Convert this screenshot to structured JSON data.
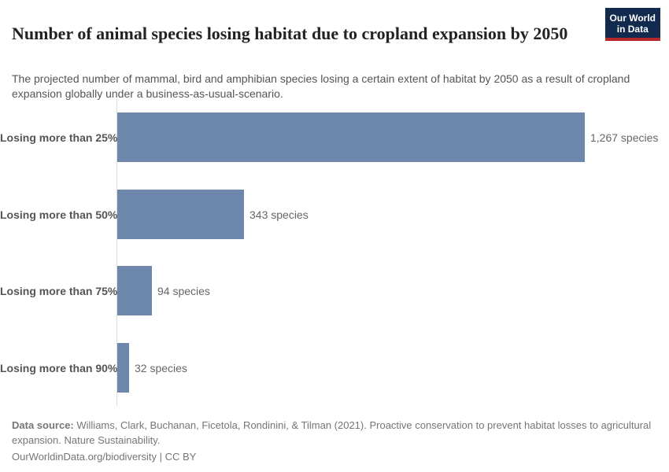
{
  "header": {
    "logo": {
      "line1": "Our World",
      "line2": "in Data"
    }
  },
  "chart_data": {
    "type": "bar",
    "orientation": "horizontal",
    "title": "Number of animal species losing habitat due to cropland expansion by 2050",
    "subtitle": "The projected number of mammal, bird and amphibian species losing a certain extent of habitat by 2050 as a result of cropland expansion globally under a business-as-usual-scenario.",
    "categories": [
      "Losing more than 25%",
      "Losing more than 50%",
      "Losing more than 75%",
      "Losing more than 90%"
    ],
    "values": [
      1267,
      343,
      94,
      32
    ],
    "value_labels": [
      "1,267 species",
      "343 species",
      "94 species",
      "32 species"
    ],
    "xlabel": "",
    "ylabel": "",
    "xlim": [
      0,
      1267
    ],
    "grid": false,
    "legend": "none"
  },
  "footer": {
    "datasource_label": "Data source:",
    "datasource_text": "Williams, Clark, Buchanan, Ficetola, Rondinini, & Tilman (2021). Proactive conservation to prevent habitat losses to agricultural expansion. Nature Sustainability.",
    "citation_line": "OurWorldinData.org/biodiversity | CC BY"
  },
  "colors": {
    "bar": "#6d87ad",
    "axis_line": "#dddddd",
    "title_text": "#222222",
    "subtitle_text": "#555555",
    "category_label": "#555555",
    "value_label": "#666666",
    "footer_text": "#757575",
    "logo_background": "#122a4e",
    "logo_accent": "#b8272c",
    "logo_text": "#ffffff"
  }
}
